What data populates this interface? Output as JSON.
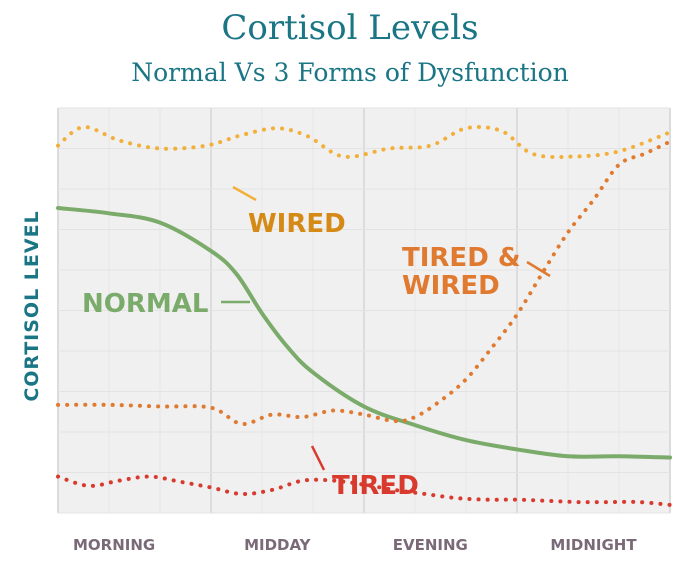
{
  "chart_data": {
    "type": "line",
    "title": "Cortisol Levels",
    "subtitle": "Normal Vs 3 Forms of Dysfunction",
    "xlabel": "",
    "ylabel": "CORTISOL LEVEL",
    "categories": [
      "MORNING",
      "MIDDAY",
      "EVENING",
      "MIDNIGHT"
    ],
    "xlim": [
      0,
      12
    ],
    "ylim": [
      0,
      10
    ],
    "grid": true,
    "series": [
      {
        "name": "WIRED",
        "color": "#f2b03a",
        "style": "dotted",
        "x": [
          0,
          0.5,
          1.2,
          2.0,
          2.9,
          3.6,
          4.3,
          4.9,
          5.6,
          6.5,
          7.3,
          8.0,
          8.7,
          9.3,
          10.1,
          11.0,
          12.0
        ],
        "y": [
          9.07,
          9.53,
          9.2,
          9.0,
          9.07,
          9.33,
          9.5,
          9.3,
          8.8,
          9.0,
          9.07,
          9.5,
          9.43,
          8.87,
          8.8,
          8.93,
          9.4
        ]
      },
      {
        "name": "NORMAL",
        "color": "#7bab6a",
        "style": "solid",
        "x": [
          0,
          1.0,
          2.0,
          3.0,
          3.5,
          4.0,
          4.5,
          5.0,
          6.0,
          7.0,
          8.0,
          9.0,
          10.0,
          11.0,
          12.0
        ],
        "y": [
          7.53,
          7.4,
          7.17,
          6.47,
          5.9,
          4.93,
          4.1,
          3.47,
          2.63,
          2.17,
          1.8,
          1.57,
          1.4,
          1.4,
          1.37
        ]
      },
      {
        "name": "TIRED & WIRED",
        "color": "#e07a30",
        "style": "dotted",
        "x": [
          0,
          1.0,
          2.0,
          3.0,
          3.6,
          4.2,
          4.8,
          5.4,
          6.0,
          6.6,
          7.0,
          7.5,
          8.0,
          8.5,
          9.0,
          9.5,
          10.0,
          10.5,
          11.0,
          11.5,
          12.0
        ],
        "y": [
          2.67,
          2.67,
          2.63,
          2.6,
          2.2,
          2.43,
          2.37,
          2.53,
          2.43,
          2.27,
          2.37,
          2.77,
          3.3,
          4.07,
          4.9,
          5.93,
          6.93,
          7.73,
          8.6,
          8.87,
          9.17
        ]
      },
      {
        "name": "TIRED",
        "color": "#d83a2e",
        "style": "dotted",
        "x": [
          0,
          0.6,
          1.2,
          1.8,
          2.4,
          3.0,
          3.6,
          4.2,
          4.8,
          5.4,
          6.0,
          6.6,
          7.2,
          7.8,
          8.4,
          9.0,
          9.6,
          10.2,
          10.8,
          11.4,
          12.0
        ],
        "y": [
          0.9,
          0.67,
          0.8,
          0.9,
          0.77,
          0.63,
          0.47,
          0.57,
          0.8,
          0.8,
          0.7,
          0.57,
          0.47,
          0.37,
          0.33,
          0.33,
          0.3,
          0.27,
          0.27,
          0.27,
          0.2
        ]
      }
    ]
  },
  "labels": {
    "wired": "WIRED",
    "normal": "NORMAL",
    "tired_wired_line1": "TIRED &",
    "tired_wired_line2": "WIRED",
    "tired": "TIRED"
  }
}
